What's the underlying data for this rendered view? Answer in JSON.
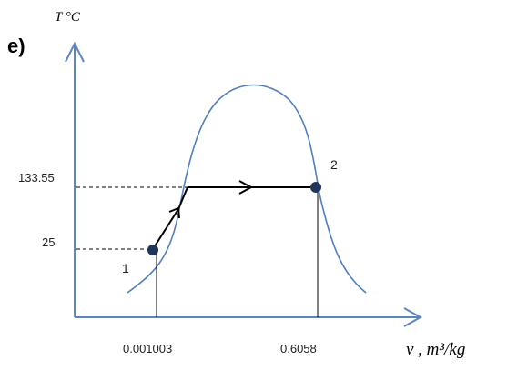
{
  "part_label": "e)",
  "y_axis_title": "T °C",
  "x_axis_title": "v , m³/kg",
  "y_ticks": {
    "high": "133.55",
    "low": "25"
  },
  "x_ticks": {
    "left": "0.001003",
    "right": "0.6058"
  },
  "points": {
    "p1": "1",
    "p2": "2"
  },
  "colors": {
    "axis": "#5b86c6",
    "dome": "#4f7fbf",
    "process": "#000000",
    "point": "#1f3559"
  }
}
